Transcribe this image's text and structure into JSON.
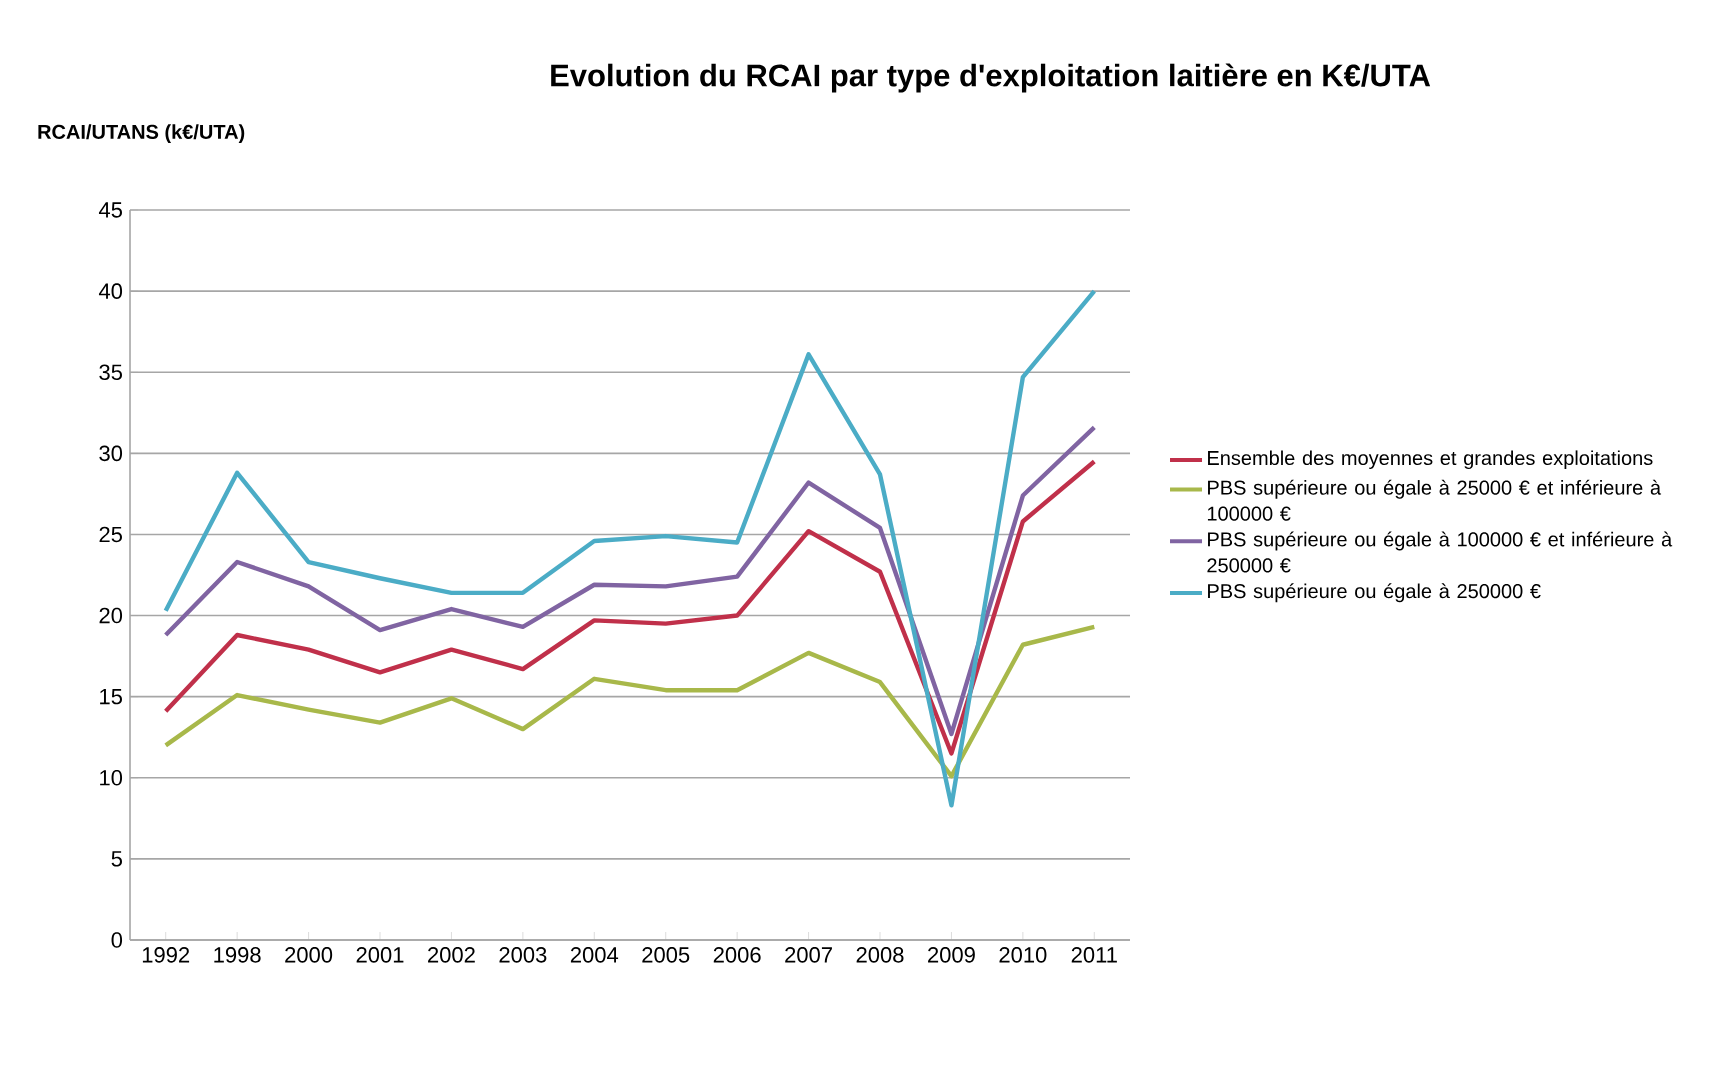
{
  "chart_data": {
    "type": "line",
    "title": "Evolution du RCAI par type d'exploitation laitière en K€/UTA",
    "ylabel": "RCAI/UTANS (k€/UTA)",
    "categories": [
      "1992",
      "1998",
      "2000",
      "2001",
      "2002",
      "2003",
      "2004",
      "2005",
      "2006",
      "2007",
      "2008",
      "2009",
      "2010",
      "2011"
    ],
    "series": [
      {
        "name": "Ensemble des moyennes et grandes exploitations",
        "color": "#c0304a",
        "values": [
          14.1,
          18.8,
          17.9,
          16.5,
          17.9,
          16.7,
          19.7,
          19.5,
          20.0,
          25.2,
          22.7,
          11.5,
          25.8,
          29.5
        ]
      },
      {
        "name": "PBS supérieure ou égale à 25000 € et inférieure à 100000 €",
        "color": "#a8b84a",
        "values": [
          12.0,
          15.1,
          14.2,
          13.4,
          14.9,
          13.0,
          16.1,
          15.4,
          15.4,
          17.7,
          15.9,
          10.1,
          18.2,
          19.3
        ]
      },
      {
        "name": "PBS supérieure ou égale à 100000 € et inférieure à 250000 €",
        "color": "#8064a2",
        "values": [
          18.8,
          23.3,
          21.8,
          19.1,
          20.4,
          19.3,
          21.9,
          21.8,
          22.4,
          28.2,
          25.4,
          12.7,
          27.4,
          31.6
        ]
      },
      {
        "name": "PBS supérieure ou égale à 250000 €",
        "color": "#4bacc6",
        "values": [
          20.3,
          28.8,
          23.3,
          22.3,
          21.4,
          21.4,
          24.6,
          24.9,
          24.5,
          36.1,
          28.7,
          8.3,
          34.7,
          40.0
        ]
      }
    ],
    "ylim": [
      0,
      45
    ],
    "yticks": [
      0,
      5,
      10,
      15,
      20,
      25,
      30,
      35,
      40,
      45
    ],
    "grid": "y",
    "legend": "right",
    "marker": "none",
    "line_style": "solid"
  }
}
